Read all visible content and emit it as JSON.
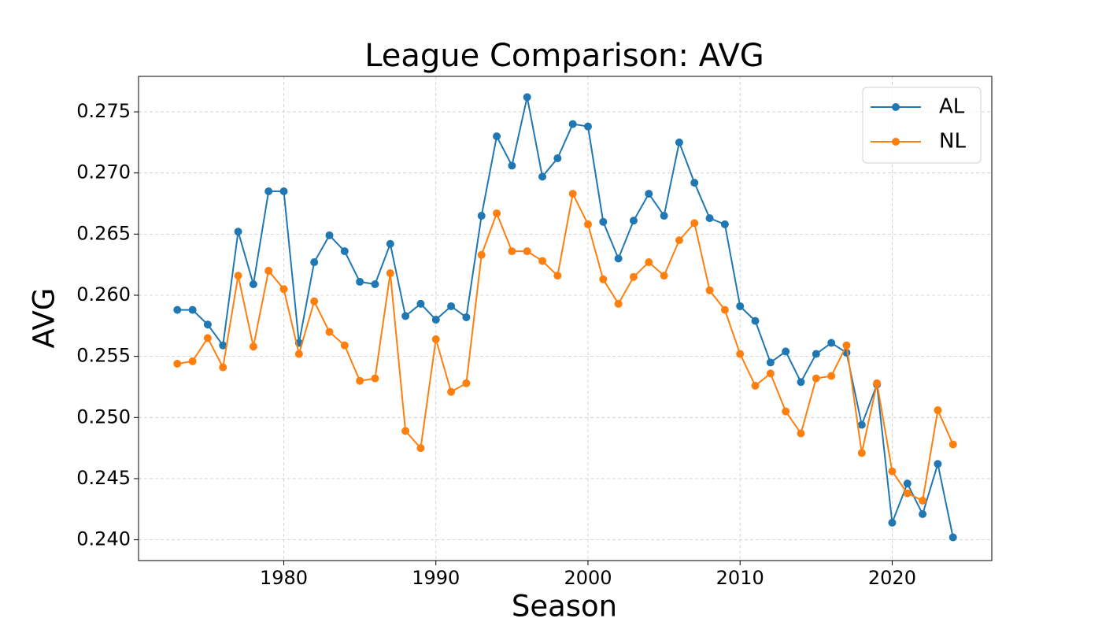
{
  "chart_data": {
    "type": "line",
    "title": "League Comparison: AVG",
    "x_label": "Season",
    "y_label": "AVG",
    "x": [
      1973,
      1974,
      1975,
      1976,
      1977,
      1978,
      1979,
      1980,
      1981,
      1982,
      1983,
      1984,
      1985,
      1986,
      1987,
      1988,
      1989,
      1990,
      1991,
      1992,
      1993,
      1994,
      1995,
      1996,
      1997,
      1998,
      1999,
      2000,
      2001,
      2002,
      2003,
      2004,
      2005,
      2006,
      2007,
      2008,
      2009,
      2010,
      2011,
      2012,
      2013,
      2014,
      2015,
      2016,
      2017,
      2018,
      2019,
      2020,
      2021,
      2022,
      2023,
      2024
    ],
    "series": [
      {
        "name": "AL",
        "color": "#1f77b4",
        "values": [
          0.2588,
          0.2588,
          0.2576,
          0.2559,
          0.2652,
          0.2609,
          0.2685,
          0.2685,
          0.2561,
          0.2627,
          0.2649,
          0.2636,
          0.2611,
          0.2609,
          0.2642,
          0.2583,
          0.2593,
          0.258,
          0.2591,
          0.2582,
          0.2665,
          0.273,
          0.2706,
          0.2762,
          0.2697,
          0.2712,
          0.274,
          0.2738,
          0.266,
          0.263,
          0.2661,
          0.2683,
          0.2665,
          0.2725,
          0.2692,
          0.2663,
          0.2658,
          0.2591,
          0.2579,
          0.2545,
          0.2554,
          0.2529,
          0.2552,
          0.2561,
          0.2553,
          0.2494,
          0.2527,
          0.2414,
          0.2446,
          0.2421,
          0.2462,
          0.2402
        ]
      },
      {
        "name": "NL",
        "color": "#ff7f0e",
        "values": [
          0.2544,
          0.2546,
          0.2565,
          0.2541,
          0.2616,
          0.2558,
          0.262,
          0.2605,
          0.2552,
          0.2595,
          0.257,
          0.2559,
          0.253,
          0.2532,
          0.2618,
          0.2489,
          0.2475,
          0.2564,
          0.2521,
          0.2528,
          0.2633,
          0.2667,
          0.2636,
          0.2636,
          0.2628,
          0.2616,
          0.2683,
          0.2658,
          0.2613,
          0.2593,
          0.2615,
          0.2627,
          0.2616,
          0.2645,
          0.2659,
          0.2604,
          0.2588,
          0.2552,
          0.2526,
          0.2536,
          0.2505,
          0.2487,
          0.2532,
          0.2534,
          0.2559,
          0.2471,
          0.2528,
          0.2456,
          0.2438,
          0.2432,
          0.2506,
          0.2478
        ]
      }
    ],
    "xlim": [
      1970.45,
      2026.55
    ],
    "xticks": [
      1980,
      1990,
      2000,
      2010,
      2020
    ],
    "ylim": [
      0.2383,
      0.2779
    ],
    "yticks": [
      {
        "value": 0.24,
        "label": "0.240"
      },
      0.245,
      {
        "value": 0.25,
        "label": "0.250"
      },
      0.255,
      {
        "value": 0.26,
        "label": "0.260"
      },
      0.265,
      {
        "value": 0.27,
        "label": "0.270"
      },
      0.275
    ],
    "grid": true,
    "legend": "upper right"
  }
}
